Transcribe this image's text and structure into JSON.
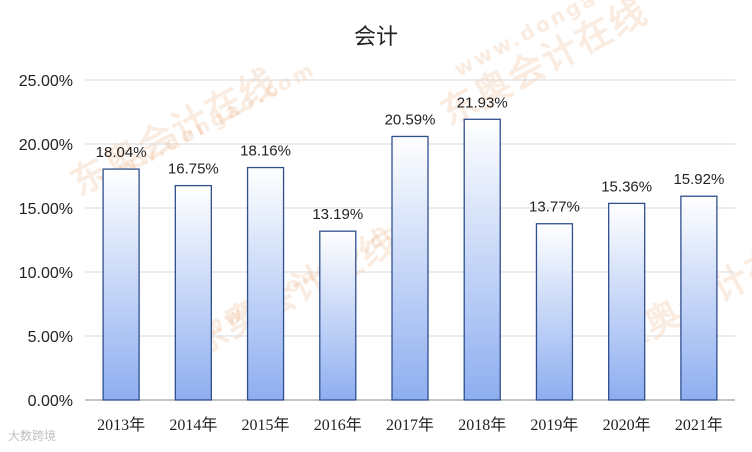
{
  "watermarks": [
    "东奥会计在线",
    "www.dongao.com"
  ],
  "source_mark": "大数跨境",
  "colors": {
    "bar_top": "#ffffff",
    "bar_bottom": "#8eaef0",
    "bar_stroke": "#2f4f8f",
    "axis": "#888888",
    "grid": "#d9d9d9",
    "text": "#222222"
  },
  "chart_data": {
    "type": "bar",
    "title": "会计",
    "xlabel": "",
    "ylabel": "",
    "categories": [
      "2013年",
      "2014年",
      "2015年",
      "2016年",
      "2017年",
      "2018年",
      "2019年",
      "2020年",
      "2021年"
    ],
    "values": [
      18.04,
      16.75,
      18.16,
      13.19,
      20.59,
      21.93,
      13.77,
      15.36,
      15.92
    ],
    "data_labels": [
      "18.04%",
      "16.75%",
      "18.16%",
      "13.19%",
      "20.59%",
      "21.93%",
      "13.77%",
      "15.36%",
      "15.92%"
    ],
    "yticks": [
      0,
      5,
      10,
      15,
      20,
      25
    ],
    "ytick_labels": [
      "0.00%",
      "5.00%",
      "10.00%",
      "15.00%",
      "20.00%",
      "25.00%"
    ],
    "ylim": [
      0,
      25
    ],
    "grid": true,
    "legend": "none"
  }
}
